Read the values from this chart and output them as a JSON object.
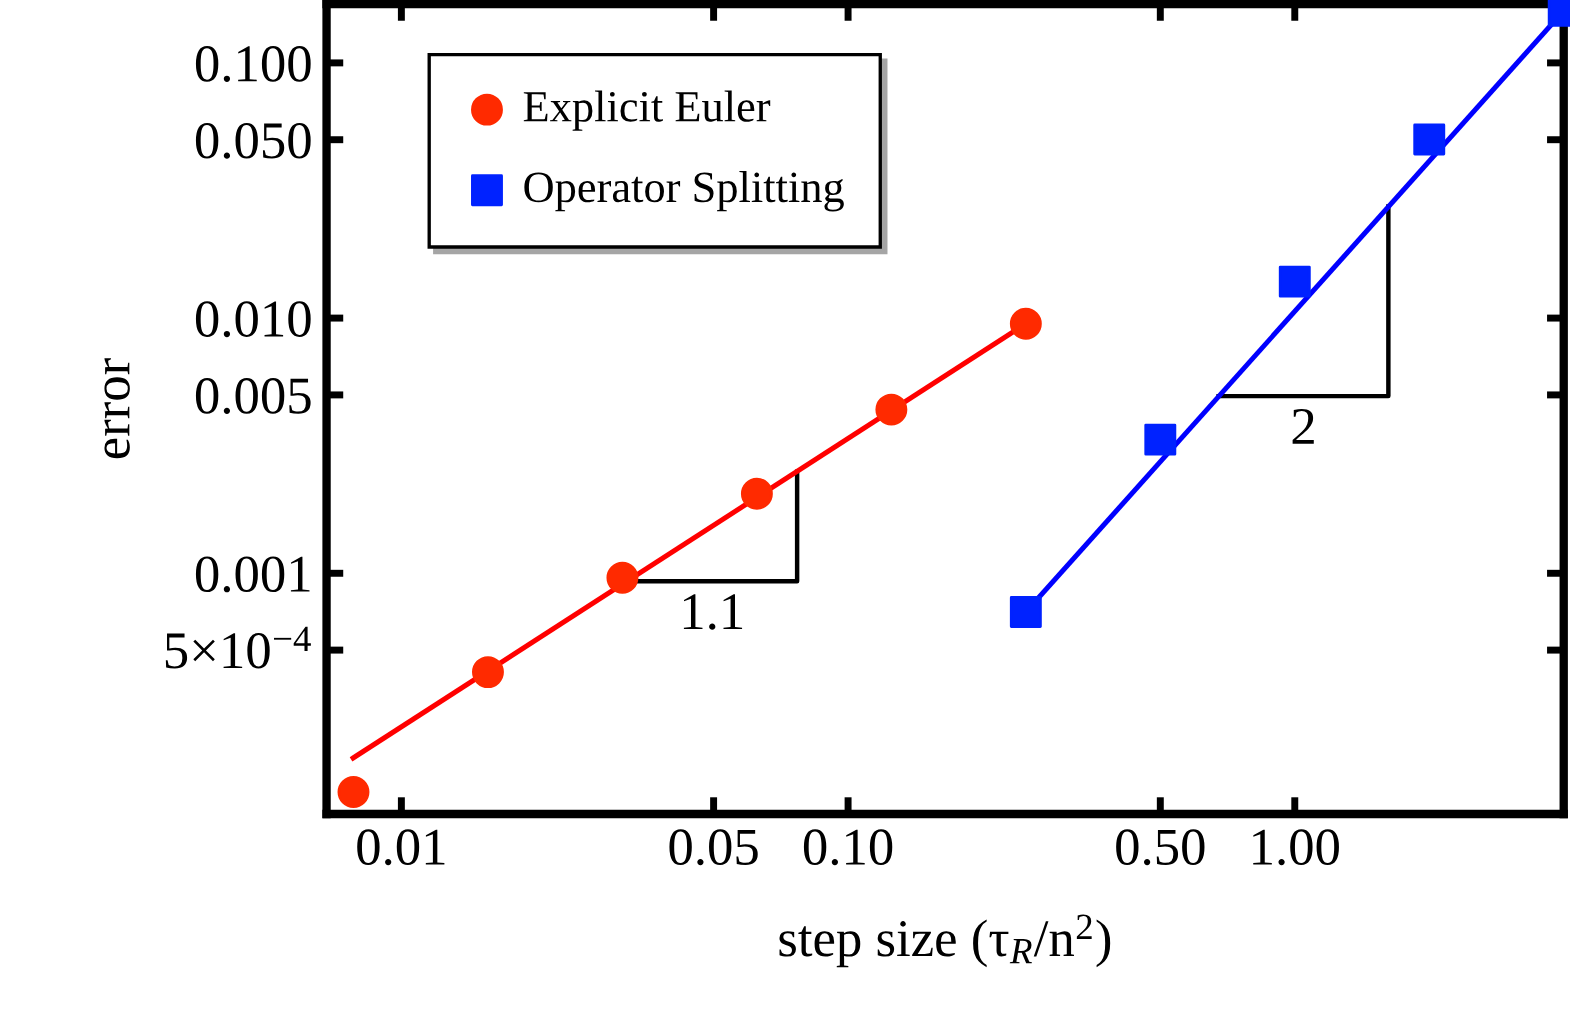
{
  "chart_data": {
    "type": "scatter",
    "xlabel": "step size (τ$_{R}$/n$^{2}$)",
    "ylabel": "error",
    "log": "xy",
    "grid": false,
    "legend": "top left",
    "xlim": [
      0.0068,
      4.0
    ],
    "ylim": [
      0.000114,
      0.17
    ],
    "xticks": [
      0.01,
      0.05,
      {
        "value": 0.1,
        "label": "0.10"
      },
      {
        "value": 0.5,
        "label": "0.50"
      },
      {
        "value": 1,
        "label": "1.00"
      }
    ],
    "yticks": [
      {
        "value": 0.0005,
        "label": "5×10$^{−4}$"
      },
      0.001,
      0.005,
      {
        "value": 0.01,
        "label": "0.010"
      },
      {
        "value": 0.05,
        "label": "0.050"
      },
      {
        "value": 0.1,
        "label": "0.100"
      }
    ],
    "series": [
      {
        "name": "Explicit Euler",
        "color": "#ff2a00",
        "marker": "circle",
        "x": [
          0.0078125,
          0.015625,
          0.03125,
          0.0625,
          0.125,
          0.25
        ],
        "values": [
          0.000139,
          0.00041,
          0.00096,
          0.00205,
          0.00438,
          0.0095
        ]
      },
      {
        "name": "Operator Splitting",
        "color": "#0022ff",
        "marker": "square",
        "x": [
          0.25,
          0.5,
          1,
          2,
          4
        ],
        "values": [
          0.000705,
          0.00334,
          0.0139,
          0.0501,
          0.16
        ]
      },
      {
        "type": "line",
        "color": "#ff0000",
        "line_style": "solid",
        "x": [
          0.0078,
          0.25
        ],
        "values": [
          0.000189,
          0.0095
        ]
      },
      {
        "type": "line",
        "color": "#0000ff",
        "line_style": "solid",
        "x": [
          0.25,
          4
        ],
        "values": [
          0.000705,
          0.16
        ]
      }
    ],
    "annotations": [
      {
        "text": "1.1",
        "x": 0.0769,
        "y": 0.0025
      },
      {
        "text": "2",
        "x": 1.62,
        "y": 0.0274
      }
    ]
  }
}
